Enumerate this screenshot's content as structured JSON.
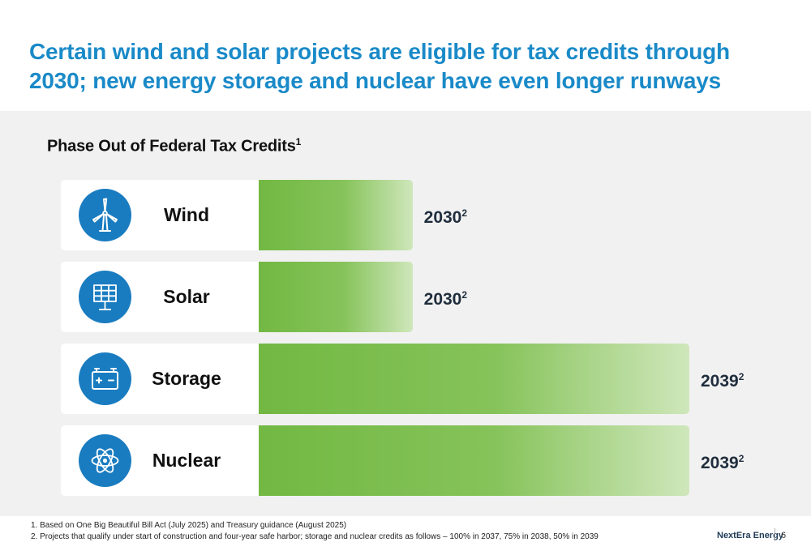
{
  "slide": {
    "title": "Certain wind and solar projects are eligible for tax credits through 2030; new energy storage and nuclear have even longer runways",
    "brand": "NextEra Energy",
    "page_number": "6",
    "footnotes": [
      "1.  Based on One Big Beautiful Bill Act (July 2025) and Treasury guidance (August 2025)",
      "2.  Projects that qualify under start of construction and four-year safe harbor; storage and nuclear credits as follows – 100% in 2037, 75% in 2038, 50% in 2039"
    ]
  },
  "chart_data": {
    "type": "bar",
    "orientation": "horizontal",
    "title": "Phase Out of Federal Tax Credits",
    "title_footnote": "1",
    "categories": [
      "Wind",
      "Solar",
      "Storage",
      "Nuclear"
    ],
    "icons": [
      "wind-turbine-icon",
      "solar-panel-icon",
      "battery-icon",
      "atom-icon"
    ],
    "values": [
      2030,
      2030,
      2039,
      2039
    ],
    "value_labels": [
      "2030",
      "2030",
      "2039",
      "2039"
    ],
    "value_footnote": "2",
    "xlim": [
      2025,
      2039
    ],
    "colors": {
      "bar_start": "#72b843",
      "bar_end": "#cfe7bb",
      "icon_bg": "#1a7cc0"
    }
  }
}
